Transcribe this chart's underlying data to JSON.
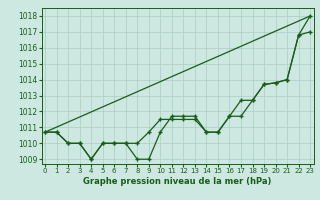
{
  "x": [
    0,
    1,
    2,
    3,
    4,
    5,
    6,
    7,
    8,
    9,
    10,
    11,
    12,
    13,
    14,
    15,
    16,
    17,
    18,
    19,
    20,
    21,
    22,
    23
  ],
  "line1": [
    1010.7,
    1010.7,
    1010.0,
    1010.0,
    1009.0,
    1010.0,
    1010.0,
    1010.0,
    1010.0,
    1010.7,
    1011.5,
    1011.5,
    1011.5,
    1011.5,
    1010.7,
    1010.7,
    1011.7,
    1011.7,
    1012.7,
    1013.7,
    1013.8,
    1014.0,
    1016.8,
    1017.0
  ],
  "line2": [
    1010.7,
    1010.7,
    1010.0,
    1010.0,
    1009.0,
    1010.0,
    1010.0,
    1010.0,
    1009.0,
    1009.0,
    1010.7,
    1011.7,
    1011.7,
    1011.7,
    1010.7,
    1010.7,
    1011.7,
    1012.7,
    1012.7,
    1013.7,
    1013.8,
    1014.0,
    1016.8,
    1018.0
  ],
  "line3_x": [
    0,
    23
  ],
  "line3_y": [
    1010.7,
    1018.0
  ],
  "bg_color": "#cce8e0",
  "grid_color": "#aaccC4",
  "line_color": "#1a5c1a",
  "xlabel": "Graphe pression niveau de la mer (hPa)",
  "ylim": [
    1008.7,
    1018.5
  ],
  "xlim": [
    -0.3,
    23.3
  ],
  "yticks": [
    1009,
    1010,
    1011,
    1012,
    1013,
    1014,
    1015,
    1016,
    1017,
    1018
  ],
  "xticks": [
    0,
    1,
    2,
    3,
    4,
    5,
    6,
    7,
    8,
    9,
    10,
    11,
    12,
    13,
    14,
    15,
    16,
    17,
    18,
    19,
    20,
    21,
    22,
    23
  ],
  "tick_fontsize": 5.0,
  "xlabel_fontsize": 6.0
}
